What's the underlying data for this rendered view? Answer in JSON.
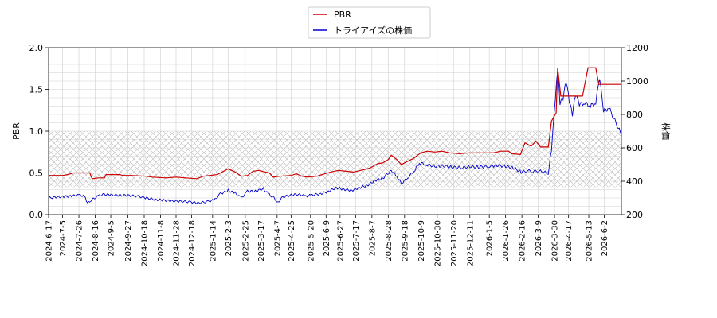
{
  "chart_data": {
    "type": "line",
    "legend": {
      "placement": "top-center",
      "entries": [
        {
          "label": "PBR",
          "color": "#cc0000"
        },
        {
          "label": "トライアイズの株価",
          "color": "#0000cc"
        }
      ]
    },
    "axes": {
      "left": {
        "label": "PBR",
        "min": 0.0,
        "max": 2.0,
        "ticks": [
          "0.0",
          "0.5",
          "1.0",
          "1.5",
          "2.0"
        ]
      },
      "right": {
        "label": "株価",
        "min": 200,
        "max": 1200,
        "ticks": [
          "200",
          "400",
          "600",
          "800",
          "1000",
          "1200"
        ]
      },
      "x": {
        "ticks": [
          "2024-6-17",
          "2024-7-5",
          "2024-7-26",
          "2024-8-16",
          "2024-9-5",
          "2024-9-27",
          "2024-10-18",
          "2024-11-8",
          "2024-11-28",
          "2024-12-18",
          "2025-1-14",
          "2025-2-3",
          "2025-2-25",
          "2025-3-17",
          "2025-4-7",
          "2025-4-25",
          "2025-5-20",
          "2025-6-9",
          "2025-6-27",
          "2025-7-17",
          "2025-8-7",
          "2025-8-28",
          "2025-9-18",
          "2025-10-9",
          "2025-10-30",
          "2025-11-20",
          "2025-12-11",
          "2026-1-5",
          "2026-1-26",
          "2026-2-16",
          "2026-3-9",
          "2026-3-30",
          "2026-4-17",
          "2026-5-13",
          "2026-6-2"
        ]
      }
    },
    "grid": true,
    "reference_band": {
      "axis": "left",
      "from": 0.33,
      "to": 1.0,
      "style": "crosshatch"
    },
    "series": [
      {
        "name": "PBR",
        "axis": "left",
        "color": "#cc0000",
        "points": [
          [
            "2024-6-17",
            0.47
          ],
          [
            "2024-7-5",
            0.47
          ],
          [
            "2024-7-12",
            0.48
          ],
          [
            "2024-7-19",
            0.5
          ],
          [
            "2024-8-9",
            0.5
          ],
          [
            "2024-8-12",
            0.43
          ],
          [
            "2024-8-20",
            0.44
          ],
          [
            "2024-8-28",
            0.44
          ],
          [
            "2024-8-30",
            0.48
          ],
          [
            "2024-9-17",
            0.48
          ],
          [
            "2024-9-20",
            0.47
          ],
          [
            "2024-10-1",
            0.47
          ],
          [
            "2024-10-21",
            0.46
          ],
          [
            "2024-10-28",
            0.45
          ],
          [
            "2024-11-15",
            0.44
          ],
          [
            "2024-11-28",
            0.45
          ],
          [
            "2024-12-10",
            0.44
          ],
          [
            "2024-12-25",
            0.43
          ],
          [
            "2025-1-2",
            0.46
          ],
          [
            "2025-1-20",
            0.48
          ],
          [
            "2025-2-3",
            0.55
          ],
          [
            "2025-2-12",
            0.51
          ],
          [
            "2025-2-20",
            0.46
          ],
          [
            "2025-2-28",
            0.47
          ],
          [
            "2025-3-7",
            0.52
          ],
          [
            "2025-3-14",
            0.53
          ],
          [
            "2025-3-28",
            0.5
          ],
          [
            "2025-4-2",
            0.45
          ],
          [
            "2025-4-10",
            0.46
          ],
          [
            "2025-4-25",
            0.47
          ],
          [
            "2025-5-2",
            0.49
          ],
          [
            "2025-5-9",
            0.46
          ],
          [
            "2025-5-16",
            0.45
          ],
          [
            "2025-5-28",
            0.46
          ],
          [
            "2025-6-4",
            0.48
          ],
          [
            "2025-6-15",
            0.51
          ],
          [
            "2025-6-25",
            0.53
          ],
          [
            "2025-7-5",
            0.52
          ],
          [
            "2025-7-14",
            0.51
          ],
          [
            "2025-7-28",
            0.54
          ],
          [
            "2025-8-5",
            0.56
          ],
          [
            "2025-8-14",
            0.61
          ],
          [
            "2025-8-21",
            0.62
          ],
          [
            "2025-8-28",
            0.66
          ],
          [
            "2025-9-1",
            0.71
          ],
          [
            "2025-9-8",
            0.66
          ],
          [
            "2025-9-14",
            0.6
          ],
          [
            "2025-9-20",
            0.63
          ],
          [
            "2025-9-29",
            0.67
          ],
          [
            "2025-10-9",
            0.74
          ],
          [
            "2025-10-17",
            0.76
          ],
          [
            "2025-10-27",
            0.75
          ],
          [
            "2025-11-5",
            0.76
          ],
          [
            "2025-11-15",
            0.74
          ],
          [
            "2025-11-28",
            0.73
          ],
          [
            "2025-12-10",
            0.74
          ],
          [
            "2025-12-25",
            0.74
          ],
          [
            "2026-1-10",
            0.74
          ],
          [
            "2026-1-20",
            0.76
          ],
          [
            "2026-1-30",
            0.76
          ],
          [
            "2026-2-3",
            0.73
          ],
          [
            "2026-2-14",
            0.72
          ],
          [
            "2026-2-20",
            0.86
          ],
          [
            "2026-2-28",
            0.82
          ],
          [
            "2026-3-6",
            0.88
          ],
          [
            "2026-3-12",
            0.81
          ],
          [
            "2026-3-22",
            0.81
          ],
          [
            "2026-3-26",
            1.12
          ],
          [
            "2026-4-1",
            1.22
          ],
          [
            "2026-4-3",
            1.76
          ],
          [
            "2026-4-7",
            1.42
          ],
          [
            "2026-4-15",
            1.42
          ],
          [
            "2026-5-5",
            1.42
          ],
          [
            "2026-5-12",
            1.76
          ],
          [
            "2026-5-22",
            1.76
          ],
          [
            "2026-5-26",
            1.56
          ],
          [
            "2026-6-10",
            1.56
          ],
          [
            "2026-6-24",
            1.56
          ]
        ]
      },
      {
        "name": "トライアイズの株価",
        "axis": "right",
        "color": "#0000cc",
        "points": [
          [
            "2024-6-17",
            300
          ],
          [
            "2024-6-28",
            305
          ],
          [
            "2024-7-8",
            308
          ],
          [
            "2024-7-18",
            312
          ],
          [
            "2024-7-26",
            318
          ],
          [
            "2024-8-2",
            310
          ],
          [
            "2024-8-6",
            268
          ],
          [
            "2024-8-12",
            290
          ],
          [
            "2024-8-20",
            312
          ],
          [
            "2024-8-26",
            322
          ],
          [
            "2024-9-5",
            318
          ],
          [
            "2024-9-16",
            316
          ],
          [
            "2024-9-27",
            315
          ],
          [
            "2024-10-10",
            310
          ],
          [
            "2024-10-21",
            300
          ],
          [
            "2024-11-1",
            290
          ],
          [
            "2024-11-12",
            286
          ],
          [
            "2024-11-22",
            282
          ],
          [
            "2024-12-3",
            280
          ],
          [
            "2024-12-16",
            276
          ],
          [
            "2024-12-26",
            270
          ],
          [
            "2025-1-8",
            278
          ],
          [
            "2025-1-17",
            290
          ],
          [
            "2025-1-24",
            325
          ],
          [
            "2025-2-3",
            345
          ],
          [
            "2025-2-12",
            330
          ],
          [
            "2025-2-20",
            300
          ],
          [
            "2025-2-28",
            340
          ],
          [
            "2025-3-10",
            340
          ],
          [
            "2025-3-20",
            355
          ],
          [
            "2025-3-28",
            320
          ],
          [
            "2025-4-3",
            300
          ],
          [
            "2025-4-8",
            272
          ],
          [
            "2025-4-14",
            305
          ],
          [
            "2025-4-25",
            318
          ],
          [
            "2025-5-6",
            322
          ],
          [
            "2025-5-14",
            310
          ],
          [
            "2025-5-22",
            318
          ],
          [
            "2025-6-2",
            325
          ],
          [
            "2025-6-12",
            340
          ],
          [
            "2025-6-22",
            362
          ],
          [
            "2025-7-2",
            352
          ],
          [
            "2025-7-12",
            345
          ],
          [
            "2025-7-22",
            362
          ],
          [
            "2025-8-1",
            375
          ],
          [
            "2025-8-11",
            405
          ],
          [
            "2025-8-21",
            418
          ],
          [
            "2025-9-1",
            465
          ],
          [
            "2025-9-8",
            430
          ],
          [
            "2025-9-14",
            385
          ],
          [
            "2025-9-22",
            420
          ],
          [
            "2025-9-30",
            460
          ],
          [
            "2025-10-7",
            510
          ],
          [
            "2025-10-16",
            500
          ],
          [
            "2025-10-27",
            490
          ],
          [
            "2025-11-7",
            492
          ],
          [
            "2025-11-18",
            485
          ],
          [
            "2025-11-30",
            480
          ],
          [
            "2025-12-11",
            488
          ],
          [
            "2025-12-22",
            485
          ],
          [
            "2026-1-5",
            490
          ],
          [
            "2026-1-15",
            495
          ],
          [
            "2026-1-26",
            490
          ],
          [
            "2026-2-5",
            480
          ],
          [
            "2026-2-15",
            455
          ],
          [
            "2026-2-22",
            465
          ],
          [
            "2026-3-2",
            460
          ],
          [
            "2026-3-9",
            465
          ],
          [
            "2026-3-15",
            455
          ],
          [
            "2026-3-22",
            450
          ],
          [
            "2026-3-26",
            590
          ],
          [
            "2026-3-31",
            900
          ],
          [
            "2026-4-3",
            1080
          ],
          [
            "2026-4-6",
            870
          ],
          [
            "2026-4-10",
            900
          ],
          [
            "2026-4-14",
            1000
          ],
          [
            "2026-4-18",
            880
          ],
          [
            "2026-4-22",
            800
          ],
          [
            "2026-4-26",
            920
          ],
          [
            "2026-5-1",
            860
          ],
          [
            "2026-5-8",
            870
          ],
          [
            "2026-5-15",
            850
          ],
          [
            "2026-5-22",
            870
          ],
          [
            "2026-5-27",
            1020
          ],
          [
            "2026-6-1",
            820
          ],
          [
            "2026-6-8",
            840
          ],
          [
            "2026-6-14",
            780
          ],
          [
            "2026-6-20",
            720
          ],
          [
            "2026-6-24",
            680
          ]
        ]
      }
    ]
  }
}
